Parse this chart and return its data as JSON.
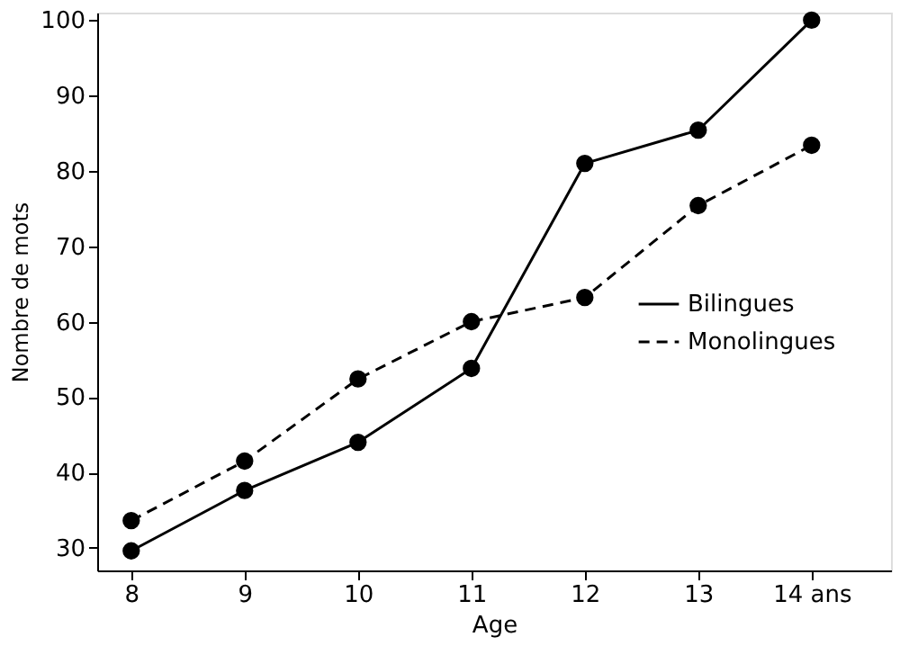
{
  "chart_data": {
    "type": "line",
    "xlabel": "Age",
    "ylabel": "Nombre de mots",
    "x": [
      8,
      9,
      10,
      11,
      12,
      13,
      14
    ],
    "series": [
      {
        "name": "Bilingues",
        "color": "#000000",
        "line_style": "solid",
        "marker": "circle",
        "values": [
          29.6,
          37.6,
          44,
          53.8,
          81,
          85.4,
          100
        ]
      },
      {
        "name": "Monolingues",
        "color": "#000000",
        "line_style": "dashed",
        "marker": "circle",
        "values": [
          33.6,
          41.5,
          52.4,
          60,
          63.2,
          75.4,
          83.4
        ]
      }
    ],
    "xlim": [
      7.7,
      14.7
    ],
    "xticks": [
      8,
      9,
      10,
      11,
      12,
      13,
      {
        "value": 14,
        "label": "14 ans"
      }
    ],
    "ylim": [
      27,
      101
    ],
    "yticks": [
      30,
      40,
      50,
      60,
      70,
      80,
      90,
      100
    ],
    "grid": false,
    "legend": "right"
  }
}
